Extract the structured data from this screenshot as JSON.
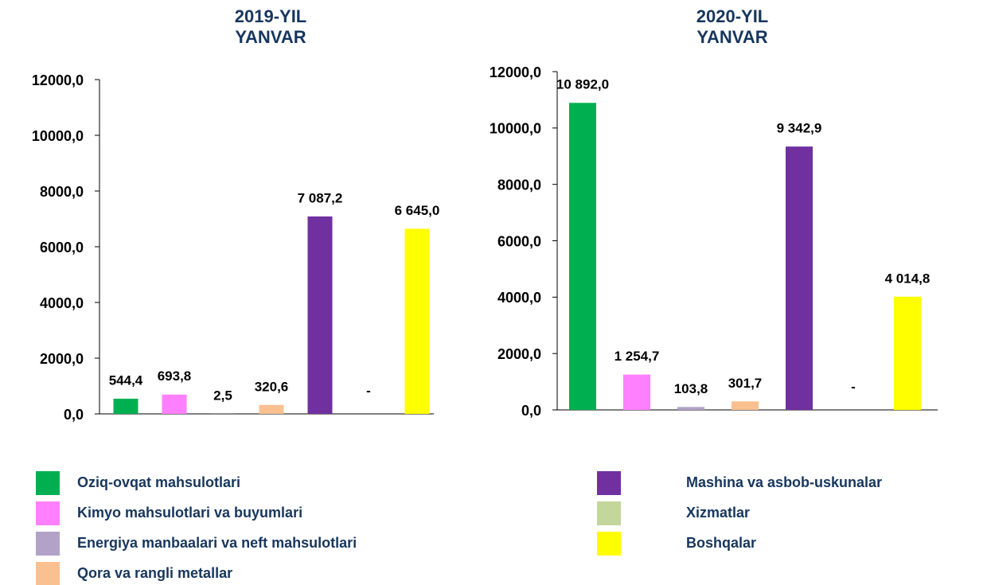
{
  "legend": [
    {
      "name": "Oziq-ovqat mahsulotlari",
      "color": "#00b050"
    },
    {
      "name": "Kimyo mahsulotlari va buyumlari",
      "color": "#ff80ff"
    },
    {
      "name": "Energiya manbaalari va neft mahsulotlari",
      "color": "#b3a2c7"
    },
    {
      "name": "Qora va rangli metallar",
      "color": "#fac090"
    },
    {
      "name": "Mashina va asbob-uskunalar",
      "color": "#7030a0"
    },
    {
      "name": "Xizmatlar",
      "color": "#c3d69b"
    },
    {
      "name": "Boshqalar",
      "color": "#ffff00"
    }
  ],
  "chart_data": [
    {
      "type": "bar",
      "title": [
        "2019-YIL",
        "YANVAR"
      ],
      "values": [
        544.4,
        693.8,
        2.5,
        320.6,
        7087.2,
        null,
        6645.0
      ],
      "value_labels": [
        "544,4",
        "693,8",
        "2,5",
        "320,6",
        "7 087,2",
        "-",
        "6 645,0"
      ],
      "ylim": [
        0,
        12000
      ],
      "yticks": [
        {
          "value": 0,
          "label": "0,0"
        },
        {
          "value": 2000,
          "label": "2000,0"
        },
        {
          "value": 4000,
          "label": "4000,0"
        },
        {
          "value": 6000,
          "label": "6000,0"
        },
        {
          "value": 8000,
          "label": "8000,0"
        },
        {
          "value": 10000,
          "label": "10000,0"
        },
        {
          "value": 12000,
          "label": "12000,0"
        }
      ]
    },
    {
      "type": "bar",
      "title": [
        "2020-YIL",
        "YANVAR"
      ],
      "values": [
        10892.0,
        1254.7,
        103.8,
        301.7,
        9342.9,
        null,
        4014.8
      ],
      "value_labels": [
        "10 892,0",
        "1 254,7",
        "103,8",
        "301,7",
        "9 342,9",
        "-",
        "4 014,8"
      ],
      "ylim": [
        0,
        12000
      ],
      "yticks": [
        {
          "value": 0,
          "label": "0,0"
        },
        {
          "value": 2000,
          "label": "2000,0"
        },
        {
          "value": 4000,
          "label": "4000,0"
        },
        {
          "value": 6000,
          "label": "6000,0"
        },
        {
          "value": 8000,
          "label": "8000,0"
        },
        {
          "value": 10000,
          "label": "10000,0"
        },
        {
          "value": 12000,
          "label": "12000,0"
        }
      ]
    }
  ]
}
